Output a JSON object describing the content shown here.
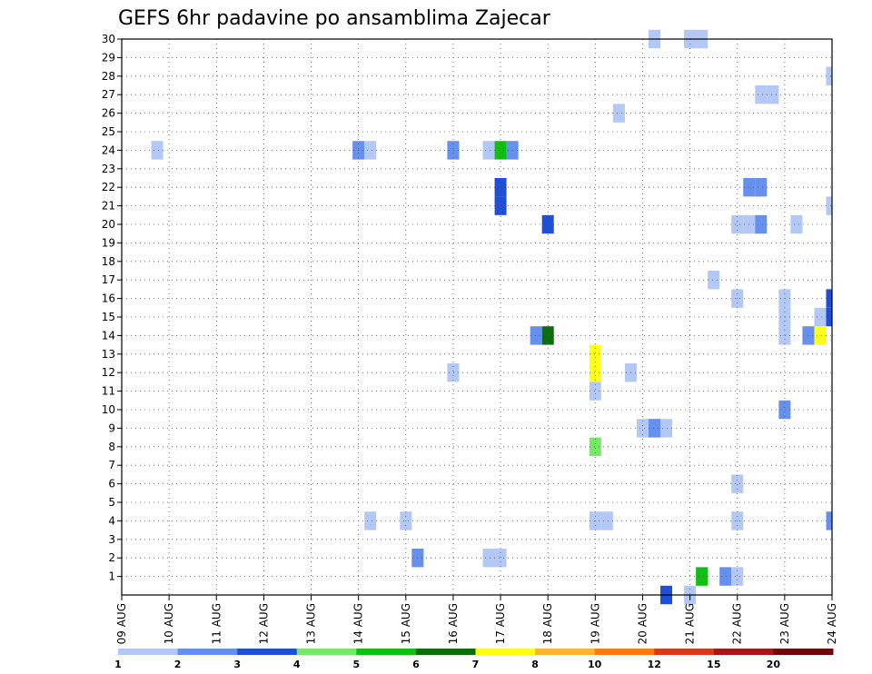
{
  "chart_data": {
    "type": "heatmap",
    "title": "GEFS 6hr padavine po ansamblima Zajecar",
    "x": {
      "tick_labels": [
        "09 AUG",
        "10 AUG",
        "11 AUG",
        "12 AUG",
        "13 AUG",
        "14 AUG",
        "15 AUG",
        "16 AUG",
        "17 AUG",
        "18 AUG",
        "19 AUG",
        "20 AUG",
        "21 AUG",
        "22 AUG",
        "23 AUG",
        "24 AUG"
      ],
      "range_days": [
        0,
        15
      ],
      "step_hours": 6
    },
    "y": {
      "tick_labels": [
        "1",
        "2",
        "3",
        "4",
        "5",
        "6",
        "7",
        "8",
        "9",
        "10",
        "11",
        "12",
        "13",
        "14",
        "15",
        "16",
        "17",
        "18",
        "19",
        "20",
        "21",
        "22",
        "23",
        "24",
        "25",
        "26",
        "27",
        "28",
        "29",
        "30"
      ],
      "range": [
        0,
        30
      ]
    },
    "grid": "dotted",
    "legend": {
      "position": "bottom",
      "labels": [
        "1",
        "2",
        "3",
        "4",
        "5",
        "6",
        "7",
        "8",
        "10",
        "12",
        "15",
        "20"
      ],
      "colors": [
        "#b3c8f4",
        "#6690ee",
        "#1f4fd8",
        "#76e865",
        "#10c010",
        "#0a6e0a",
        "#ffff1a",
        "#ffb333",
        "#ff7a10",
        "#d8391a",
        "#a8141a",
        "#6e0808"
      ]
    },
    "cells": [
      [
        0.75,
        24,
        0
      ],
      [
        5.0,
        24,
        1
      ],
      [
        5.25,
        24,
        0
      ],
      [
        7.0,
        24,
        1
      ],
      [
        7.75,
        24,
        0
      ],
      [
        8.0,
        24,
        4
      ],
      [
        8.25,
        24,
        1
      ],
      [
        8.0,
        22,
        2
      ],
      [
        8.0,
        21,
        2
      ],
      [
        10.5,
        26,
        0
      ],
      [
        11.25,
        30,
        0
      ],
      [
        12.0,
        30,
        0
      ],
      [
        12.25,
        30,
        0
      ],
      [
        13.5,
        27,
        0
      ],
      [
        13.75,
        27,
        0
      ],
      [
        15.0,
        28,
        0
      ],
      [
        15.0,
        21,
        0
      ],
      [
        13.0,
        20,
        0
      ],
      [
        13.25,
        20,
        0
      ],
      [
        13.5,
        20,
        1
      ],
      [
        14.25,
        20,
        0
      ],
      [
        13.25,
        22,
        1
      ],
      [
        13.5,
        22,
        1
      ],
      [
        9.0,
        20,
        2
      ],
      [
        12.5,
        17,
        0
      ],
      [
        13.0,
        16,
        0
      ],
      [
        14.0,
        16,
        0
      ],
      [
        14.0,
        15,
        0
      ],
      [
        14.0,
        14,
        0
      ],
      [
        14.75,
        15,
        0
      ],
      [
        14.75,
        14,
        6
      ],
      [
        15.0,
        16,
        2
      ],
      [
        15.0,
        15,
        2
      ],
      [
        14.5,
        14,
        1
      ],
      [
        9.0,
        14,
        5
      ],
      [
        8.75,
        14,
        1
      ],
      [
        7.0,
        12,
        0
      ],
      [
        10.0,
        13,
        6
      ],
      [
        10.0,
        12,
        6
      ],
      [
        10.0,
        11,
        0
      ],
      [
        10.75,
        12,
        0
      ],
      [
        14.0,
        10,
        1
      ],
      [
        11.0,
        9,
        0
      ],
      [
        11.25,
        9,
        1
      ],
      [
        11.5,
        9,
        0
      ],
      [
        10.0,
        8,
        3
      ],
      [
        13.0,
        6,
        0
      ],
      [
        5.25,
        4,
        0
      ],
      [
        6.0,
        4,
        0
      ],
      [
        10.0,
        4,
        0
      ],
      [
        10.25,
        4,
        0
      ],
      [
        13.0,
        4,
        0
      ],
      [
        15.0,
        4,
        1
      ],
      [
        6.25,
        2,
        1
      ],
      [
        7.75,
        2,
        0
      ],
      [
        8.0,
        2,
        0
      ],
      [
        12.25,
        1,
        4
      ],
      [
        12.75,
        1,
        1
      ],
      [
        13.0,
        1,
        0
      ],
      [
        11.5,
        0,
        2
      ],
      [
        12.0,
        0,
        0
      ]
    ]
  }
}
